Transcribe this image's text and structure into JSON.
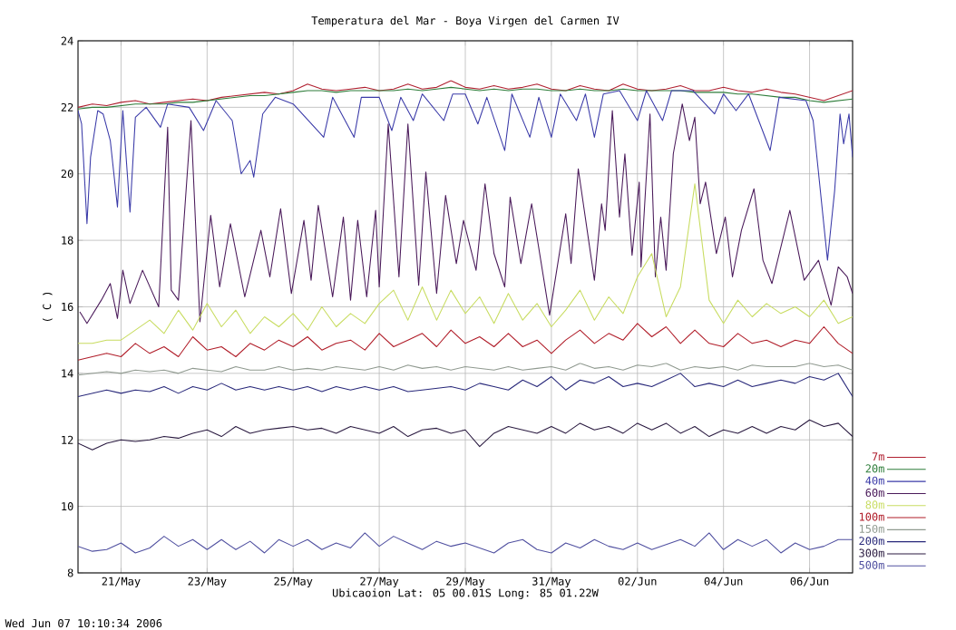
{
  "chart_data": {
    "type": "line",
    "title": "Temperatura del Mar - Boya Virgen del Carmen IV",
    "xlabel": "Ubicaoion Lat: 05 00.01S Long: 85 01.22W",
    "ylabel": "( C )",
    "annotations": [
      "Wed Jun 07 10:10:34 2006"
    ],
    "xlim": [
      "2006-05-20",
      "2006-06-07"
    ],
    "xticks": [
      {
        "value": "2006-05-21",
        "label": "21/May"
      },
      {
        "value": "2006-05-23",
        "label": "23/May"
      },
      {
        "value": "2006-05-25",
        "label": "25/May"
      },
      {
        "value": "2006-05-27",
        "label": "27/May"
      },
      {
        "value": "2006-05-29",
        "label": "29/May"
      },
      {
        "value": "2006-05-31",
        "label": "31/May"
      },
      {
        "value": "2006-06-02",
        "label": "02/Jun"
      },
      {
        "value": "2006-06-04",
        "label": "04/Jun"
      },
      {
        "value": "2006-06-06",
        "label": "06/Jun"
      }
    ],
    "ylim": [
      8,
      24
    ],
    "yticks": [
      8,
      10,
      12,
      14,
      16,
      18,
      20,
      22,
      24
    ],
    "grid": true,
    "legend": "right",
    "x": [
      "2006-05-20T00:00",
      "2006-05-20T08:00",
      "2006-05-20T16:00",
      "2006-05-21T00:00",
      "2006-05-21T08:00",
      "2006-05-21T16:00",
      "2006-05-22T00:00",
      "2006-05-22T08:00",
      "2006-05-22T16:00",
      "2006-05-23T00:00",
      "2006-05-23T08:00",
      "2006-05-23T16:00",
      "2006-05-24T00:00",
      "2006-05-24T08:00",
      "2006-05-24T16:00",
      "2006-05-25T00:00",
      "2006-05-25T08:00",
      "2006-05-25T16:00",
      "2006-05-26T00:00",
      "2006-05-26T08:00",
      "2006-05-26T16:00",
      "2006-05-27T00:00",
      "2006-05-27T08:00",
      "2006-05-27T16:00",
      "2006-05-28T00:00",
      "2006-05-28T08:00",
      "2006-05-28T16:00",
      "2006-05-29T00:00",
      "2006-05-29T08:00",
      "2006-05-29T16:00",
      "2006-05-30T00:00",
      "2006-05-30T08:00",
      "2006-05-30T16:00",
      "2006-05-31T00:00",
      "2006-05-31T08:00",
      "2006-05-31T16:00",
      "2006-06-01T00:00",
      "2006-06-01T08:00",
      "2006-06-01T16:00",
      "2006-06-02T00:00",
      "2006-06-02T08:00",
      "2006-06-02T16:00",
      "2006-06-03T00:00",
      "2006-06-03T08:00",
      "2006-06-03T16:00",
      "2006-06-04T00:00",
      "2006-06-04T08:00",
      "2006-06-04T16:00",
      "2006-06-05T00:00",
      "2006-06-05T08:00",
      "2006-06-05T16:00",
      "2006-06-06T00:00",
      "2006-06-06T08:00",
      "2006-06-06T16:00",
      "2006-06-07T00:00"
    ],
    "series": [
      {
        "name": "7m",
        "color": "#b02030",
        "values": [
          22.0,
          22.1,
          22.05,
          22.15,
          22.2,
          22.1,
          22.15,
          22.2,
          22.25,
          22.2,
          22.3,
          22.35,
          22.4,
          22.45,
          22.4,
          22.5,
          22.7,
          22.55,
          22.5,
          22.55,
          22.6,
          22.5,
          22.55,
          22.7,
          22.55,
          22.6,
          22.8,
          22.6,
          22.55,
          22.65,
          22.55,
          22.6,
          22.7,
          22.55,
          22.5,
          22.65,
          22.55,
          22.5,
          22.7,
          22.55,
          22.5,
          22.55,
          22.65,
          22.5,
          22.5,
          22.6,
          22.5,
          22.45,
          22.55,
          22.45,
          22.4,
          22.3,
          22.2,
          22.35,
          22.5
        ]
      },
      {
        "name": "20m",
        "color": "#2e7d3a",
        "values": [
          21.95,
          22.0,
          22.0,
          22.05,
          22.1,
          22.1,
          22.1,
          22.15,
          22.15,
          22.2,
          22.25,
          22.3,
          22.35,
          22.35,
          22.4,
          22.45,
          22.5,
          22.5,
          22.45,
          22.5,
          22.5,
          22.5,
          22.5,
          22.55,
          22.5,
          22.55,
          22.6,
          22.55,
          22.5,
          22.55,
          22.5,
          22.55,
          22.55,
          22.5,
          22.5,
          22.55,
          22.5,
          22.5,
          22.55,
          22.5,
          22.5,
          22.5,
          22.5,
          22.45,
          22.45,
          22.45,
          22.4,
          22.4,
          22.35,
          22.3,
          22.3,
          22.2,
          22.15,
          22.2,
          22.25
        ]
      },
      {
        "name": "40m",
        "color": "#3a3aa8",
        "x": [
          "2006-05-20T00:00",
          "2006-05-20T02:00",
          "2006-05-20T05:00",
          "2006-05-20T07:00",
          "2006-05-20T11:00",
          "2006-05-20T14:00",
          "2006-05-20T18:00",
          "2006-05-20T22:00",
          "2006-05-21T01:00",
          "2006-05-21T05:00",
          "2006-05-21T08:00",
          "2006-05-21T14:00",
          "2006-05-21T22:00",
          "2006-05-22T02:00",
          "2006-05-22T14:00",
          "2006-05-22T22:00",
          "2006-05-23T05:00",
          "2006-05-23T14:00",
          "2006-05-23T19:00",
          "2006-05-24T00:00",
          "2006-05-24T02:00",
          "2006-05-24T07:00",
          "2006-05-24T14:00",
          "2006-05-25T00:00",
          "2006-05-25T17:00",
          "2006-05-25T22:00",
          "2006-05-26T10:00",
          "2006-05-26T14:00",
          "2006-05-27T00:00",
          "2006-05-27T07:00",
          "2006-05-27T12:00",
          "2006-05-27T19:00",
          "2006-05-28T00:00",
          "2006-05-28T12:00",
          "2006-05-28T17:00",
          "2006-05-29T00:00",
          "2006-05-29T07:00",
          "2006-05-29T12:00",
          "2006-05-29T22:00",
          "2006-05-30T02:00",
          "2006-05-30T12:00",
          "2006-05-30T17:00",
          "2006-05-31T00:00",
          "2006-05-31T05:00",
          "2006-05-31T14:00",
          "2006-05-31T19:00",
          "2006-06-01T00:00",
          "2006-06-01T05:00",
          "2006-06-01T14:00",
          "2006-06-02T00:00",
          "2006-06-02T05:00",
          "2006-06-02T14:00",
          "2006-06-02T19:00",
          "2006-06-03T07:00",
          "2006-06-03T19:00",
          "2006-06-04T00:00",
          "2006-06-04T07:00",
          "2006-06-04T14:00",
          "2006-06-05T02:00",
          "2006-06-05T07:00",
          "2006-06-05T22:00",
          "2006-06-06T02:00",
          "2006-06-06T10:00",
          "2006-06-06T14:00",
          "2006-06-06T17:00",
          "2006-06-06T19:00",
          "2006-06-06T22:00",
          "2006-06-07T00:00"
        ],
        "values": [
          21.9,
          21.5,
          18.5,
          20.5,
          21.9,
          21.8,
          21.0,
          19.0,
          21.9,
          18.85,
          21.7,
          22.0,
          21.4,
          22.1,
          22.0,
          21.3,
          22.2,
          21.6,
          20.0,
          20.4,
          19.9,
          21.8,
          22.3,
          22.1,
          21.1,
          22.3,
          21.1,
          22.3,
          22.3,
          21.3,
          22.3,
          21.6,
          22.4,
          21.6,
          22.4,
          22.4,
          21.5,
          22.3,
          20.7,
          22.4,
          21.1,
          22.3,
          21.1,
          22.4,
          21.6,
          22.4,
          21.1,
          22.4,
          22.5,
          21.6,
          22.5,
          21.6,
          22.5,
          22.5,
          21.8,
          22.4,
          21.9,
          22.4,
          20.7,
          22.3,
          22.2,
          21.6,
          17.4,
          19.5,
          21.8,
          20.9,
          21.8,
          20.5
        ]
      },
      {
        "name": "60m",
        "color": "#4a1a5a",
        "x": [
          "2006-05-20T01:00",
          "2006-05-20T05:00",
          "2006-05-20T13:00",
          "2006-05-20T18:00",
          "2006-05-20T22:00",
          "2006-05-21T01:00",
          "2006-05-21T05:00",
          "2006-05-21T12:00",
          "2006-05-21T21:00",
          "2006-05-22T02:00",
          "2006-05-22T04:00",
          "2006-05-22T08:00",
          "2006-05-22T15:00",
          "2006-05-22T20:00",
          "2006-05-23T02:00",
          "2006-05-23T07:00",
          "2006-05-23T13:00",
          "2006-05-23T21:00",
          "2006-05-24T06:00",
          "2006-05-24T11:00",
          "2006-05-24T17:00",
          "2006-05-24T23:00",
          "2006-05-25T06:00",
          "2006-05-25T10:00",
          "2006-05-25T14:00",
          "2006-05-25T22:00",
          "2006-05-26T04:00",
          "2006-05-26T08:00",
          "2006-05-26T12:00",
          "2006-05-26T17:00",
          "2006-05-26T22:00",
          "2006-05-27T00:00",
          "2006-05-27T05:00",
          "2006-05-27T11:00",
          "2006-05-27T16:00",
          "2006-05-27T22:00",
          "2006-05-28T02:00",
          "2006-05-28T08:00",
          "2006-05-28T13:00",
          "2006-05-28T19:00",
          "2006-05-28T23:00",
          "2006-05-29T06:00",
          "2006-05-29T11:00",
          "2006-05-29T16:00",
          "2006-05-29T22:00",
          "2006-05-30T01:00",
          "2006-05-30T07:00",
          "2006-05-30T13:00",
          "2006-05-30T23:00",
          "2006-05-31T08:00",
          "2006-05-31T11:00",
          "2006-05-31T15:00",
          "2006-06-01T00:00",
          "2006-06-01T04:00",
          "2006-06-01T06:00",
          "2006-06-01T10:00",
          "2006-06-01T14:00",
          "2006-06-01T17:00",
          "2006-06-01T21:00",
          "2006-06-02T01:00",
          "2006-06-02T02:00",
          "2006-06-02T07:00",
          "2006-06-02T10:00",
          "2006-06-02T13:00",
          "2006-06-02T16:00",
          "2006-06-02T20:00",
          "2006-06-03T01:00",
          "2006-06-03T05:00",
          "2006-06-03T08:00",
          "2006-06-03T11:00",
          "2006-06-03T14:00",
          "2006-06-03T20:00",
          "2006-06-04T01:00",
          "2006-06-04T05:00",
          "2006-06-04T10:00",
          "2006-06-04T17:00",
          "2006-06-04T22:00",
          "2006-06-05T03:00",
          "2006-06-05T13:00",
          "2006-06-05T21:00",
          "2006-06-06T05:00",
          "2006-06-06T12:00",
          "2006-06-06T16:00",
          "2006-06-06T21:00",
          "2006-06-07T00:00"
        ],
        "values": [
          15.85,
          15.5,
          16.2,
          16.7,
          15.65,
          17.1,
          16.1,
          17.1,
          16.0,
          21.4,
          16.5,
          16.2,
          21.6,
          15.55,
          18.75,
          16.6,
          18.5,
          16.3,
          18.3,
          16.9,
          18.95,
          16.4,
          18.6,
          16.8,
          19.05,
          16.3,
          18.7,
          16.2,
          18.6,
          16.3,
          18.9,
          16.6,
          21.5,
          16.9,
          21.5,
          16.65,
          20.05,
          16.4,
          19.35,
          17.3,
          18.6,
          17.1,
          19.7,
          17.6,
          16.6,
          19.3,
          17.3,
          19.1,
          15.75,
          18.8,
          17.3,
          20.15,
          16.8,
          19.1,
          18.3,
          21.9,
          18.7,
          20.6,
          17.55,
          19.75,
          17.2,
          21.8,
          16.9,
          18.7,
          17.1,
          20.6,
          22.1,
          21.0,
          21.7,
          19.1,
          19.75,
          17.6,
          18.7,
          16.9,
          18.3,
          19.55,
          17.4,
          16.7,
          18.9,
          16.8,
          17.4,
          16.05,
          17.2,
          16.9,
          16.4
        ]
      },
      {
        "name": "80m",
        "color": "#c8dc60",
        "values": [
          14.9,
          14.9,
          15.0,
          15.0,
          15.3,
          15.6,
          15.2,
          15.9,
          15.3,
          16.1,
          15.4,
          15.9,
          15.2,
          15.7,
          15.4,
          15.8,
          15.3,
          16.0,
          15.4,
          15.8,
          15.5,
          16.1,
          16.5,
          15.6,
          16.6,
          15.6,
          16.5,
          15.8,
          16.3,
          15.5,
          16.4,
          15.6,
          16.1,
          15.4,
          15.9,
          16.5,
          15.6,
          16.3,
          15.8,
          16.9,
          17.6,
          15.7,
          16.6,
          19.7,
          16.2,
          15.5,
          16.2,
          15.7,
          16.1,
          15.8,
          16.0,
          15.7,
          16.2,
          15.5,
          15.7
        ]
      },
      {
        "name": "100m",
        "color": "#b01c28",
        "values": [
          14.4,
          14.5,
          14.6,
          14.5,
          14.9,
          14.6,
          14.8,
          14.5,
          15.1,
          14.7,
          14.8,
          14.5,
          14.9,
          14.7,
          15.0,
          14.8,
          15.1,
          14.7,
          14.9,
          15.0,
          14.7,
          15.2,
          14.8,
          15.0,
          15.2,
          14.8,
          15.3,
          14.9,
          15.1,
          14.8,
          15.2,
          14.8,
          15.0,
          14.6,
          15.0,
          15.3,
          14.9,
          15.2,
          15.0,
          15.5,
          15.1,
          15.4,
          14.9,
          15.3,
          14.9,
          14.8,
          15.2,
          14.9,
          15.0,
          14.8,
          15.0,
          14.9,
          15.4,
          14.9,
          14.6
        ]
      },
      {
        "name": "150m",
        "color": "#909a90",
        "values": [
          13.95,
          14.0,
          14.05,
          14.0,
          14.1,
          14.05,
          14.1,
          14.0,
          14.15,
          14.1,
          14.05,
          14.2,
          14.1,
          14.1,
          14.2,
          14.1,
          14.15,
          14.1,
          14.2,
          14.15,
          14.1,
          14.2,
          14.1,
          14.25,
          14.15,
          14.2,
          14.1,
          14.2,
          14.15,
          14.1,
          14.2,
          14.1,
          14.15,
          14.2,
          14.1,
          14.3,
          14.15,
          14.2,
          14.1,
          14.25,
          14.2,
          14.3,
          14.1,
          14.2,
          14.15,
          14.2,
          14.1,
          14.25,
          14.2,
          14.2,
          14.2,
          14.3,
          14.2,
          14.25,
          14.1
        ]
      },
      {
        "name": "200m",
        "color": "#28287a",
        "values": [
          13.3,
          13.4,
          13.5,
          13.4,
          13.5,
          13.45,
          13.6,
          13.4,
          13.6,
          13.5,
          13.7,
          13.5,
          13.6,
          13.5,
          13.6,
          13.5,
          13.6,
          13.45,
          13.6,
          13.5,
          13.6,
          13.5,
          13.6,
          13.45,
          13.5,
          13.55,
          13.6,
          13.5,
          13.7,
          13.6,
          13.5,
          13.8,
          13.6,
          13.9,
          13.5,
          13.8,
          13.7,
          13.9,
          13.6,
          13.7,
          13.6,
          13.8,
          14.0,
          13.6,
          13.7,
          13.6,
          13.8,
          13.6,
          13.7,
          13.8,
          13.7,
          13.9,
          13.8,
          14.0,
          13.3
        ]
      },
      {
        "name": "300m",
        "color": "#2a1a40",
        "values": [
          11.9,
          11.7,
          11.9,
          12.0,
          11.95,
          12.0,
          12.1,
          12.05,
          12.2,
          12.3,
          12.1,
          12.4,
          12.2,
          12.3,
          12.35,
          12.4,
          12.3,
          12.35,
          12.2,
          12.4,
          12.3,
          12.2,
          12.4,
          12.1,
          12.3,
          12.35,
          12.2,
          12.3,
          11.8,
          12.2,
          12.4,
          12.3,
          12.2,
          12.4,
          12.2,
          12.5,
          12.3,
          12.4,
          12.2,
          12.5,
          12.3,
          12.5,
          12.2,
          12.4,
          12.1,
          12.3,
          12.2,
          12.4,
          12.2,
          12.4,
          12.3,
          12.6,
          12.4,
          12.5,
          12.1
        ]
      },
      {
        "name": "500m",
        "color": "#5050a0",
        "values": [
          8.8,
          8.65,
          8.7,
          8.9,
          8.6,
          8.75,
          9.1,
          8.8,
          9.0,
          8.7,
          9.0,
          8.7,
          8.95,
          8.6,
          9.0,
          8.8,
          9.0,
          8.7,
          8.9,
          8.75,
          9.2,
          8.8,
          9.1,
          8.9,
          8.7,
          8.95,
          8.8,
          8.9,
          8.75,
          8.6,
          8.9,
          9.0,
          8.7,
          8.6,
          8.9,
          8.75,
          9.0,
          8.8,
          8.7,
          8.9,
          8.7,
          8.85,
          9.0,
          8.8,
          9.2,
          8.7,
          9.0,
          8.8,
          9.0,
          8.6,
          8.9,
          8.7,
          8.8,
          9.0,
          9.0
        ]
      }
    ]
  }
}
